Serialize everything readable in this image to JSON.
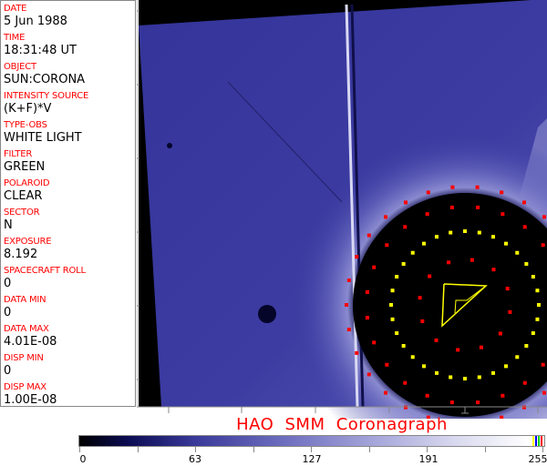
{
  "header_fields": [
    {
      "label": "DATE",
      "value": "5 Jun 1988"
    },
    {
      "label": "TIME",
      "value": "18:31:48 UT"
    },
    {
      "label": "OBJECT",
      "value": "SUN:CORONA"
    },
    {
      "label": "INTENSITY SOURCE",
      "value": "(K+F)*V"
    },
    {
      "label": "TYPE-OBS",
      "value": "WHITE LIGHT"
    },
    {
      "label": "FILTER",
      "value": "GREEN"
    },
    {
      "label": "POLAROID",
      "value": "CLEAR"
    },
    {
      "label": "SECTOR",
      "value": "N"
    },
    {
      "label": "EXPOSURE",
      "value": "8.192"
    },
    {
      "label": "SPACECRAFT ROLL",
      "value": "0"
    },
    {
      "label": "DATA MIN",
      "value": "0"
    },
    {
      "label": "DATA MAX",
      "value": "4.01E-08"
    },
    {
      "label": "DISP MIN",
      "value": "0"
    },
    {
      "label": "DISP MAX",
      "value": "1.00E-08"
    }
  ],
  "title": "HAO  SMM Coronagraph",
  "colorbar": {
    "tick_labels": [
      "0",
      "63",
      "127",
      "191",
      "255"
    ],
    "colormap": [
      "#000000",
      "#0a0a50",
      "#3a3a9a",
      "#7070c0",
      "#aaaadc",
      "#dcdcf0",
      "#ffffff"
    ],
    "reserved_colors": [
      "#ffff00",
      "#0000ff",
      "#00c000",
      "#ff0000"
    ]
  },
  "overlay_colors": {
    "marker_red": "#ff0000",
    "marker_yellow": "#ffff00",
    "image_blue": "#3a3a9e"
  }
}
